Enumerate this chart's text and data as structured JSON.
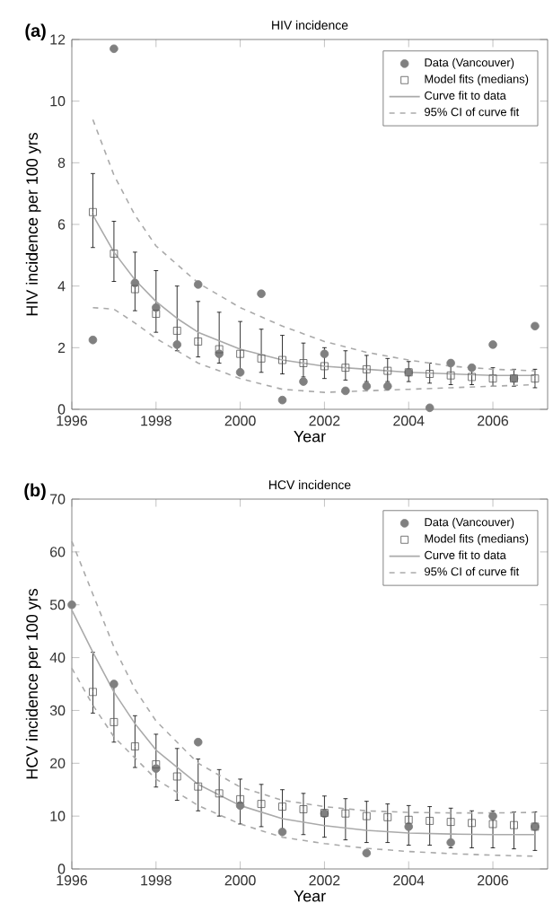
{
  "chart_data": [
    {
      "type": "line",
      "title": "HIV incidence",
      "xlabel": "Year",
      "ylabel": "HIV incidence per 100 yrs",
      "annotations": [
        "(a)"
      ],
      "legend": "top right",
      "xlim": [
        1996,
        2007.3
      ],
      "xticks": [
        1996,
        1998,
        2000,
        2002,
        2004,
        2006
      ],
      "ylim": [
        0,
        12
      ],
      "yticks": [
        0,
        2,
        4,
        6,
        8,
        10,
        12
      ],
      "series": [
        {
          "name": "Data (Vancouver)",
          "type": "scatter",
          "marker": "circle",
          "color": "#808080",
          "x": [
            1996.5,
            1997,
            1997.5,
            1998,
            1998.5,
            1999,
            1999.5,
            2000,
            2000.5,
            2001,
            2001.5,
            2002,
            2002.5,
            2003,
            2003.5,
            2004,
            2004.5,
            2005,
            2005.5,
            2006,
            2006.5,
            2007
          ],
          "values": [
            2.25,
            11.7,
            4.1,
            3.3,
            2.1,
            4.05,
            1.8,
            1.2,
            3.75,
            0.3,
            0.9,
            1.8,
            0.6,
            0.75,
            0.75,
            1.2,
            0.05,
            1.5,
            1.35,
            2.1,
            1.0,
            2.7
          ]
        },
        {
          "name": "Model fits (medians)",
          "type": "scatter",
          "marker": "square",
          "color": "#555555",
          "x": [
            1996.5,
            1997,
            1997.5,
            1998,
            1998.5,
            1999,
            1999.5,
            2000,
            2000.5,
            2001,
            2001.5,
            2002,
            2002.5,
            2003,
            2003.5,
            2004,
            2004.5,
            2005,
            2005.5,
            2006,
            2006.5,
            2007
          ],
          "values": [
            6.4,
            5.05,
            3.9,
            3.1,
            2.55,
            2.2,
            1.95,
            1.8,
            1.65,
            1.6,
            1.5,
            1.4,
            1.35,
            1.3,
            1.25,
            1.2,
            1.15,
            1.1,
            1.05,
            1.0,
            1.0,
            1.0
          ],
          "errors": [
            [
              5.25,
              7.65
            ],
            [
              4.15,
              6.1
            ],
            [
              3.2,
              5.1
            ],
            [
              2.5,
              4.5
            ],
            [
              1.9,
              4.0
            ],
            [
              1.7,
              3.5
            ],
            [
              1.5,
              3.15
            ],
            [
              1.3,
              2.85
            ],
            [
              1.2,
              2.6
            ],
            [
              1.15,
              2.4
            ],
            [
              1.05,
              2.15
            ],
            [
              1.0,
              2.0
            ],
            [
              0.95,
              1.9
            ],
            [
              0.9,
              1.75
            ],
            [
              0.9,
              1.65
            ],
            [
              0.9,
              1.55
            ],
            [
              0.85,
              1.5
            ],
            [
              0.8,
              1.45
            ],
            [
              0.8,
              1.4
            ],
            [
              0.75,
              1.35
            ],
            [
              0.75,
              1.3
            ],
            [
              0.7,
              1.3
            ]
          ]
        },
        {
          "name": "Curve fit to data",
          "type": "line",
          "line_style": "solid",
          "color": "#aaaaaa",
          "x": [
            1996.5,
            1997,
            1997.5,
            1998,
            1998.5,
            1999,
            2000,
            2001,
            2002,
            2003,
            2004,
            2005,
            2006,
            2007
          ],
          "values": [
            6.3,
            5.1,
            4.2,
            3.5,
            2.95,
            2.5,
            1.95,
            1.6,
            1.4,
            1.3,
            1.2,
            1.15,
            1.1,
            1.1
          ]
        },
        {
          "name": "95% CI of curve fit",
          "type": "line",
          "line_style": "dashed",
          "color": "#aaaaaa",
          "x": [
            1996.5,
            1997,
            1997.5,
            1998,
            1999,
            2000,
            2001,
            2002,
            2003,
            2004,
            2005,
            2006,
            2007
          ],
          "values": [
            9.4,
            7.6,
            6.3,
            5.3,
            4.1,
            3.3,
            2.7,
            2.2,
            1.85,
            1.6,
            1.4,
            1.3,
            1.25
          ]
        },
        {
          "type": "line",
          "line_style": "dashed",
          "color": "#aaaaaa",
          "x": [
            1996.5,
            1997,
            1997.5,
            1998,
            1999,
            2000,
            2001,
            2002,
            2003,
            2004,
            2005,
            2006,
            2007
          ],
          "values": [
            3.3,
            3.25,
            2.8,
            2.3,
            1.5,
            1.0,
            0.65,
            0.55,
            0.6,
            0.65,
            0.7,
            0.75,
            0.8
          ]
        }
      ]
    },
    {
      "type": "line",
      "title": "HCV incidence",
      "xlabel": "Year",
      "ylabel": "HCV incidence per 100 yrs",
      "annotations": [
        "(b)"
      ],
      "legend": "top right",
      "xlim": [
        1996,
        2007.3
      ],
      "xticks": [
        1996,
        1998,
        2000,
        2002,
        2004,
        2006
      ],
      "ylim": [
        0,
        70
      ],
      "yticks": [
        0,
        10,
        20,
        30,
        40,
        50,
        60,
        70
      ],
      "series": [
        {
          "name": "Data (Vancouver)",
          "type": "scatter",
          "marker": "circle",
          "color": "#808080",
          "x": [
            1996,
            1997,
            1998,
            1999,
            2000,
            2001,
            2002,
            2003,
            2004,
            2005,
            2006,
            2007
          ],
          "values": [
            50,
            35,
            19,
            24,
            12,
            7,
            10.5,
            3,
            8,
            5,
            10,
            8
          ]
        },
        {
          "name": "Model fits (medians)",
          "type": "scatter",
          "marker": "square",
          "color": "#555555",
          "x": [
            1996.5,
            1997,
            1997.5,
            1998,
            1998.5,
            1999,
            1999.5,
            2000,
            2000.5,
            2001,
            2001.5,
            2002,
            2002.5,
            2003,
            2003.5,
            2004,
            2004.5,
            2005,
            2005.5,
            2006,
            2006.5,
            2007
          ],
          "values": [
            33.5,
            27.8,
            23.2,
            19.8,
            17.5,
            15.6,
            14.3,
            13.2,
            12.3,
            11.8,
            11.3,
            10.6,
            10.5,
            10,
            9.8,
            9.3,
            9.1,
            8.9,
            8.7,
            8.5,
            8.3,
            8
          ],
          "errors": [
            [
              29.5,
              41
            ],
            [
              24,
              35
            ],
            [
              19.2,
              29
            ],
            [
              15.5,
              25.5
            ],
            [
              13,
              22.8
            ],
            [
              11,
              20.8
            ],
            [
              10,
              18.8
            ],
            [
              8.5,
              17
            ],
            [
              8,
              16
            ],
            [
              7,
              15
            ],
            [
              6.5,
              14.3
            ],
            [
              6,
              13.8
            ],
            [
              5.5,
              13.3
            ],
            [
              5,
              12.8
            ],
            [
              5,
              12.3
            ],
            [
              4.5,
              12
            ],
            [
              4.5,
              11.8
            ],
            [
              4,
              11.5
            ],
            [
              4,
              11
            ],
            [
              4,
              11
            ],
            [
              3.8,
              10.8
            ],
            [
              3.5,
              10.8
            ]
          ]
        },
        {
          "name": "Curve fit to data",
          "type": "line",
          "line_style": "solid",
          "color": "#aaaaaa",
          "x": [
            1996,
            1996.5,
            1997,
            1997.5,
            1998,
            1999,
            2000,
            2001,
            2002,
            2003,
            2004,
            2005,
            2006,
            2007
          ],
          "values": [
            49,
            41,
            33.5,
            27.5,
            22.5,
            16,
            12,
            9.5,
            8.2,
            7.3,
            6.8,
            6.6,
            6.5,
            6.5
          ]
        },
        {
          "name": "95% CI of curve fit",
          "type": "line",
          "line_style": "dashed",
          "color": "#aaaaaa",
          "x": [
            1996,
            1996.5,
            1997,
            1997.5,
            1998,
            1999,
            2000,
            2001,
            2002,
            2003,
            2004,
            2005,
            2006,
            2007
          ],
          "values": [
            62,
            52,
            42,
            34,
            28,
            20,
            15.5,
            13,
            11.8,
            11,
            10.7,
            10.6,
            10.6,
            10.7
          ]
        },
        {
          "type": "line",
          "line_style": "dashed",
          "color": "#aaaaaa",
          "x": [
            1996,
            1996.5,
            1997,
            1997.5,
            1998,
            1999,
            2000,
            2001,
            2002,
            2003,
            2004,
            2005,
            2006,
            2007
          ],
          "values": [
            38,
            31,
            25,
            21,
            17,
            12,
            8.5,
            6,
            4.8,
            3.9,
            3.3,
            2.9,
            2.6,
            2.4
          ]
        }
      ]
    }
  ]
}
